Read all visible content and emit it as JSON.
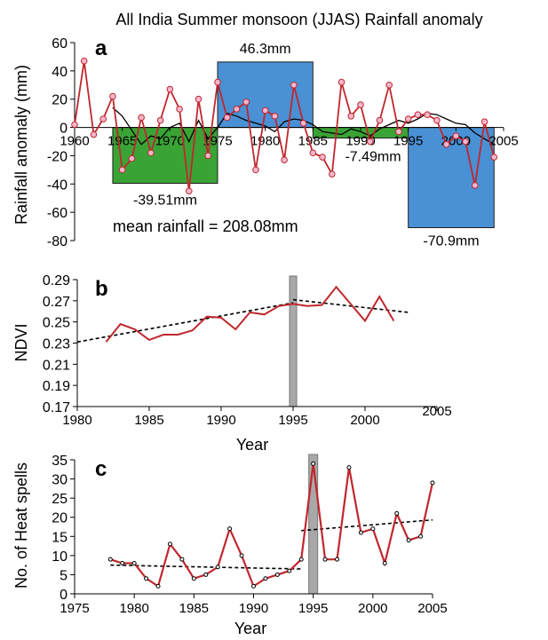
{
  "figure_title": "All India Summer monsoon (JJAS) Rainfall anomaly",
  "chart_data": [
    {
      "panel": "a",
      "type": "line",
      "title": "All India Summer monsoon (JJAS) Rainfall anomaly",
      "xlabel": "",
      "ylabel": "Rainfall anomaly (mm)",
      "xlim": [
        1960,
        2005
      ],
      "ylim": [
        -80,
        60
      ],
      "xticks": [
        1960,
        1965,
        1970,
        1975,
        1980,
        1985,
        1990,
        1995,
        2000,
        2005
      ],
      "yticks": [
        60,
        40,
        20,
        0,
        -20,
        -40,
        -60,
        -80
      ],
      "annotation": "mean rainfall = 208.08mm",
      "colors": {
        "anomaly_line": "#c0272d",
        "marker_fill": "#f3b6cf",
        "running_mean": "#000000",
        "bar_blue": "#4a90d4",
        "bar_green": "#3aa335"
      },
      "period_bars": [
        {
          "from": 1964,
          "to": 1975,
          "value": -39.51,
          "label": "-39.51mm",
          "color": "green"
        },
        {
          "from": 1975,
          "to": 1985,
          "value": 46.3,
          "label": "46.3mm",
          "color": "blue"
        },
        {
          "from": 1985,
          "to": 1995,
          "value": -7.49,
          "label": "-7.49mm",
          "color": "green"
        },
        {
          "from": 1995,
          "to": 2004,
          "value": -70.9,
          "label": "-70.9mm",
          "color": "blue"
        }
      ],
      "series": [
        {
          "style": "red line with markers",
          "x": [
            1960,
            1961,
            1962,
            1963,
            1964,
            1965,
            1966,
            1967,
            1968,
            1969,
            1970,
            1971,
            1972,
            1973,
            1974,
            1975,
            1976,
            1977,
            1978,
            1979,
            1980,
            1981,
            1982,
            1983,
            1984,
            1985,
            1986,
            1987,
            1988,
            1989,
            1990,
            1991,
            1992,
            1993,
            1994,
            1995,
            1996,
            1997,
            1998,
            1999,
            2000,
            2001,
            2002,
            2003,
            2004
          ],
          "values": [
            2,
            47,
            -5,
            6,
            22,
            -30,
            -22,
            7,
            -18,
            5,
            27,
            13,
            -45,
            20,
            -20,
            32,
            7,
            13,
            18,
            -30,
            12,
            8,
            -23,
            30,
            3,
            -18,
            -21,
            -33,
            32,
            8,
            16,
            -10,
            5,
            30,
            -3,
            6,
            9,
            9,
            5,
            -12,
            -6,
            -10,
            -41,
            4,
            -21
          ]
        },
        {
          "style": "black running mean",
          "x": [
            1964,
            1965,
            1966,
            1967,
            1968,
            1969,
            1970,
            1971,
            1972,
            1973,
            1974,
            1975,
            1976,
            1977,
            1978,
            1979,
            1980,
            1981,
            1982,
            1983,
            1984,
            1985,
            1986,
            1987,
            1988,
            1989,
            1990,
            1991,
            1992,
            1993,
            1994,
            1995,
            1996,
            1997,
            1998,
            1999,
            2000,
            2001,
            2002,
            2003,
            2004
          ],
          "values": [
            14,
            8,
            -2,
            -12,
            -6,
            -8,
            0,
            3,
            -10,
            5,
            -8,
            0,
            10,
            8,
            5,
            3,
            1,
            -3,
            4,
            6,
            5,
            2,
            -3,
            -4,
            -5,
            -1,
            -3,
            -6,
            -1,
            2,
            5,
            3,
            6,
            10,
            9,
            6,
            3,
            2,
            -4,
            -8,
            -12
          ]
        }
      ]
    },
    {
      "panel": "b",
      "type": "line",
      "xlabel": "Year",
      "ylabel": "NDVI",
      "xlim": [
        1980,
        2005
      ],
      "ylim": [
        0.17,
        0.29
      ],
      "xticks": [
        1980,
        1985,
        1990,
        1995,
        2000,
        2005
      ],
      "yticks": [
        "0.29",
        "0.27",
        "0.25",
        "0.23",
        "0.21",
        "0.19",
        "0.17"
      ],
      "marker_year": 1995,
      "colors": {
        "series": "#c0272d",
        "trend": "#000000"
      },
      "series": [
        {
          "style": "red line",
          "x": [
            1982,
            1983,
            1984,
            1985,
            1986,
            1987,
            1988,
            1989,
            1990,
            1991,
            1992,
            1993,
            1994,
            1995,
            1996,
            1997,
            1998,
            1999,
            2000,
            2001,
            2002
          ],
          "values": [
            0.231,
            0.248,
            0.243,
            0.233,
            0.238,
            0.238,
            0.242,
            0.255,
            0.254,
            0.243,
            0.259,
            0.257,
            0.265,
            0.267,
            0.265,
            0.266,
            0.283,
            0.267,
            0.251,
            0.274,
            0.251
          ]
        }
      ],
      "trendlines": [
        {
          "x": [
            1980,
            1995
          ],
          "values": [
            0.231,
            0.268
          ]
        },
        {
          "x": [
            1995,
            2003
          ],
          "values": [
            0.271,
            0.259
          ]
        }
      ]
    },
    {
      "panel": "c",
      "type": "line",
      "xlabel": "Year",
      "ylabel": "No. of Heat spells",
      "xlim": [
        1975,
        2005
      ],
      "ylim": [
        0,
        35
      ],
      "xticks": [
        1975,
        1980,
        1985,
        1990,
        1995,
        2000,
        2005
      ],
      "yticks": [
        35,
        30,
        25,
        20,
        15,
        10,
        5,
        0
      ],
      "marker_year": 1995,
      "colors": {
        "series": "#c0272d",
        "trend": "#000000"
      },
      "series": [
        {
          "style": "red line with markers",
          "x": [
            1978,
            1979,
            1980,
            1981,
            1982,
            1983,
            1984,
            1985,
            1986,
            1987,
            1988,
            1989,
            1990,
            1991,
            1992,
            1993,
            1994,
            1995,
            1996,
            1997,
            1998,
            1999,
            2000,
            2001,
            2002,
            2003,
            2004,
            2005
          ],
          "values": [
            9,
            8,
            8,
            4,
            2,
            13,
            9,
            4,
            5,
            7,
            17,
            10,
            2,
            4,
            5,
            6,
            9,
            34,
            9,
            9,
            33,
            16,
            17,
            8,
            21,
            14,
            15,
            29
          ]
        }
      ],
      "trendlines": [
        {
          "x": [
            1978,
            1994
          ],
          "values": [
            7.5,
            6.5
          ]
        },
        {
          "x": [
            1994,
            2005
          ],
          "values": [
            16.5,
            19.3
          ]
        }
      ]
    }
  ]
}
